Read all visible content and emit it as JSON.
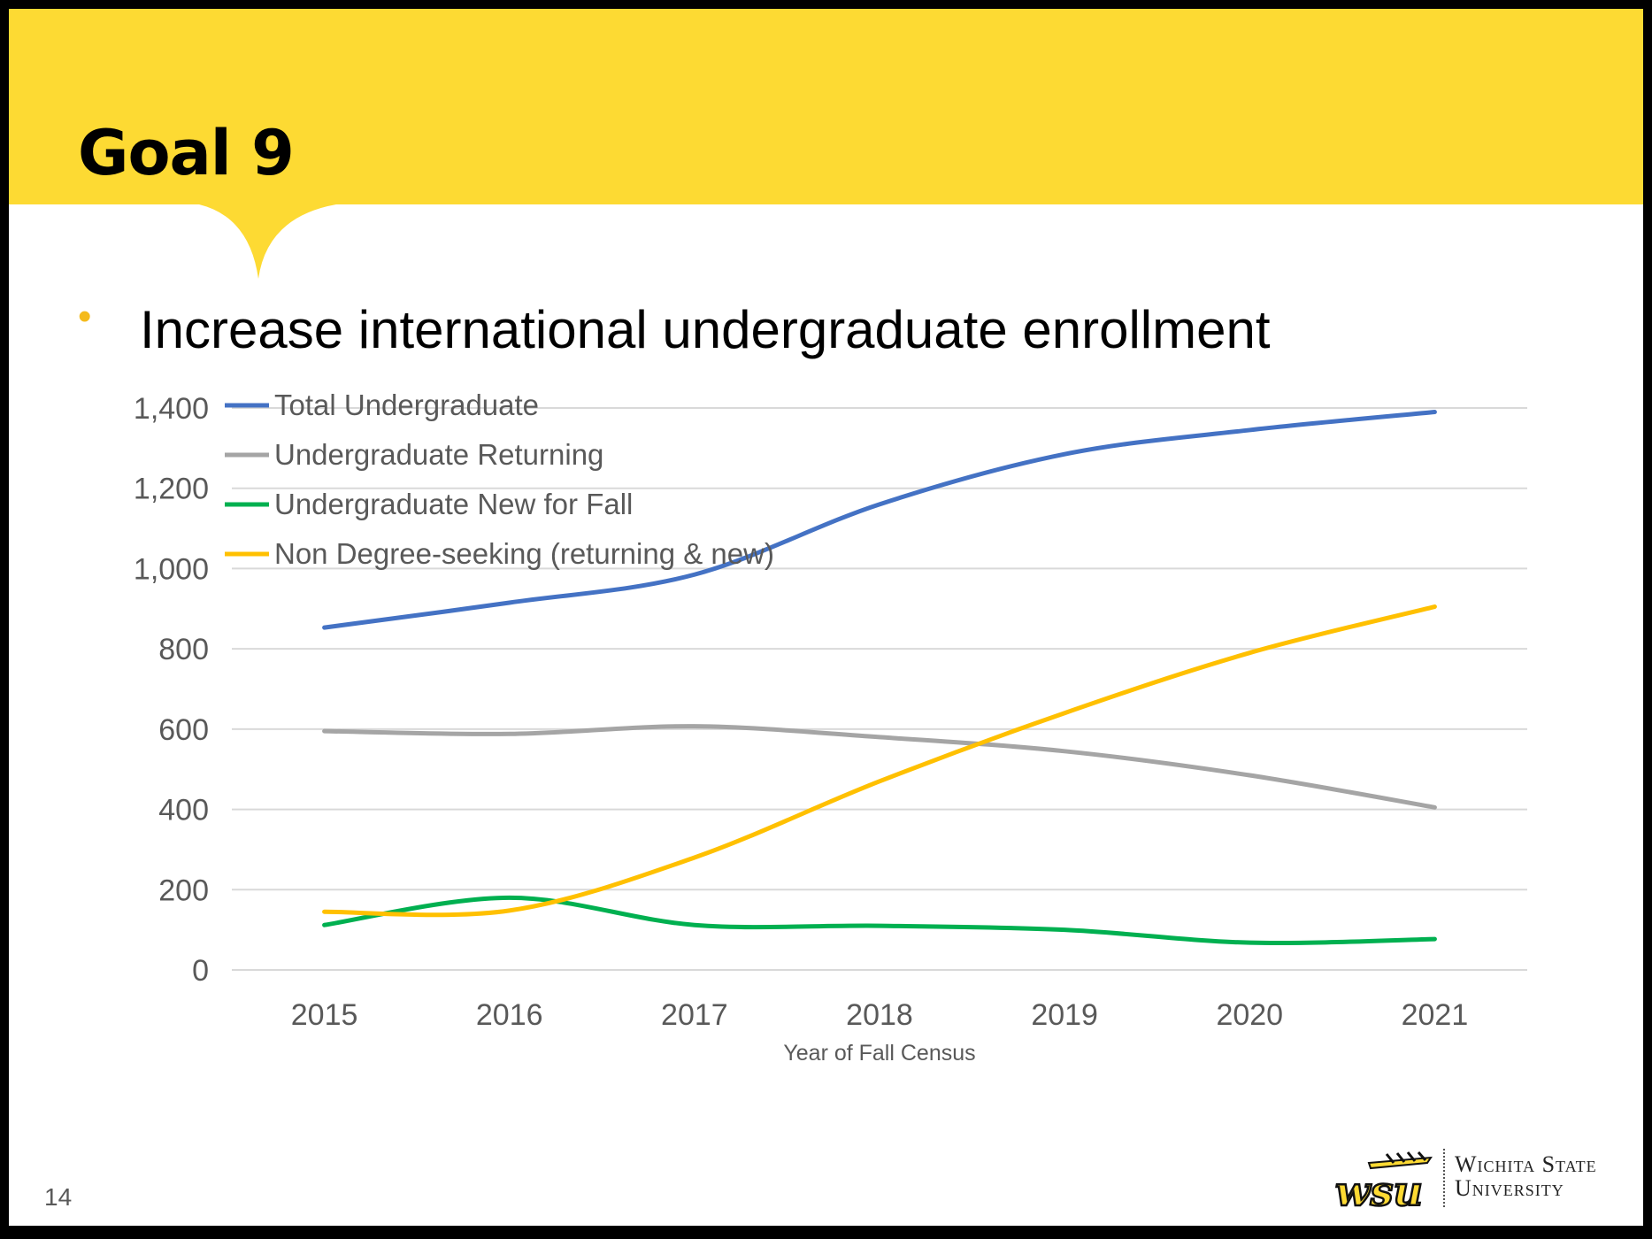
{
  "slide": {
    "title": "Goal 9",
    "bullet_symbol": "•",
    "bullet_text": "Increase international undergraduate enrollment",
    "page_number": "14",
    "university_line1": "Wichita State",
    "university_line2": "University",
    "logo_icon": "wsu-shocker-logo-icon",
    "colors": {
      "banner": "#FDDA33",
      "bullet": "#F4BA1B"
    }
  },
  "chart_data": {
    "type": "line",
    "categories": [
      "2015",
      "2016",
      "2017",
      "2018",
      "2019",
      "2020",
      "2021"
    ],
    "series": [
      {
        "name": "Total Undergraduate",
        "color": "#4472C4",
        "values": [
          853,
          915,
          985,
          1160,
          1285,
          1345,
          1390
        ]
      },
      {
        "name": "Undergraduate Returning",
        "color": "#A5A5A5",
        "values": [
          595,
          588,
          607,
          580,
          545,
          485,
          405
        ]
      },
      {
        "name": "Undergraduate New for Fall",
        "color": "#00B050",
        "values": [
          112,
          180,
          112,
          110,
          100,
          68,
          77
        ]
      },
      {
        "name": "Non Degree-seeking (returning & new)",
        "color": "#FFC000",
        "values": [
          145,
          148,
          280,
          470,
          640,
          790,
          905
        ]
      }
    ],
    "xlabel": "Year of Fall Census",
    "ylabel": "",
    "ylim": [
      0,
      1400
    ],
    "yticks": [
      0,
      200,
      400,
      600,
      800,
      1000,
      1200,
      1400
    ],
    "ytick_labels": [
      "0",
      "200",
      "400",
      "600",
      "800",
      "1,000",
      "1,200",
      "1,400"
    ],
    "grid": true,
    "legend": "top-left",
    "smooth": true
  }
}
